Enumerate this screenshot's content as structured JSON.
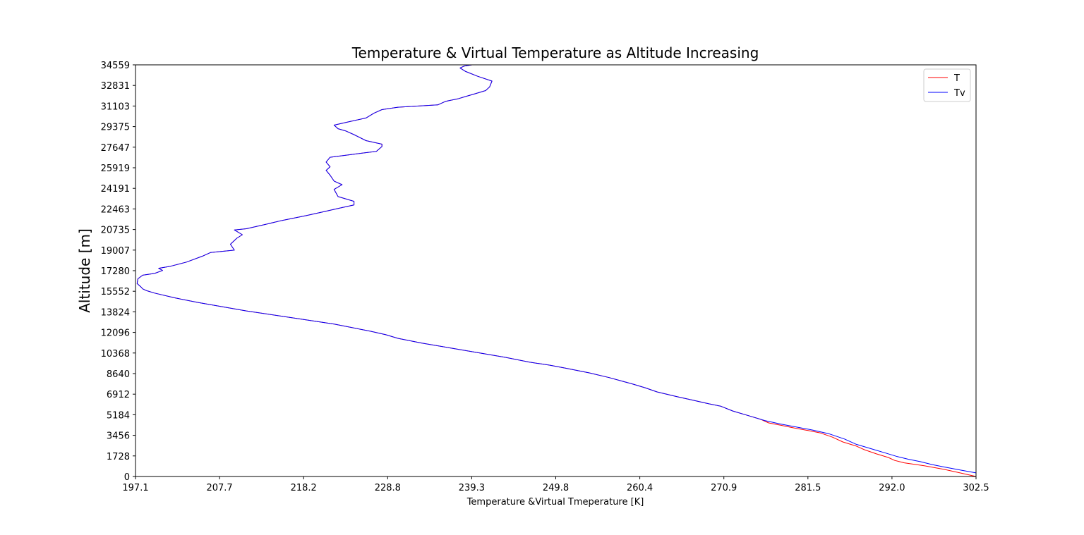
{
  "chart_data": {
    "type": "line",
    "title": "Temperature & Virtual Temperature as Altitude Increasing",
    "xlabel": "Temperature &Virtual Tmeperature [K]",
    "ylabel": "Altitude [m]",
    "xlim": [
      197.1,
      302.5
    ],
    "ylim": [
      0,
      34559
    ],
    "xticks": [
      "197.1",
      "207.7",
      "218.2",
      "228.8",
      "239.3",
      "249.8",
      "260.4",
      "270.9",
      "281.5",
      "292.0",
      "302.5"
    ],
    "yticks": [
      "0",
      "1728",
      "3456",
      "5184",
      "6912",
      "8640",
      "10368",
      "12096",
      "13824",
      "15552",
      "17280",
      "19007",
      "20735",
      "22463",
      "24191",
      "25919",
      "27647",
      "29375",
      "31103",
      "32831",
      "34559"
    ],
    "grid": false,
    "legend": {
      "position": "top-right",
      "entries": [
        "T",
        "Tv"
      ]
    },
    "series": [
      {
        "name": "T",
        "color": "#ff0000",
        "points": [
          [
            302.5,
            0
          ],
          [
            300.5,
            300
          ],
          [
            298.5,
            600
          ],
          [
            296.0,
            900
          ],
          [
            293.5,
            1150
          ],
          [
            292.3,
            1350
          ],
          [
            291.5,
            1600
          ],
          [
            290.0,
            1900
          ],
          [
            288.5,
            2250
          ],
          [
            287.5,
            2550
          ],
          [
            285.8,
            2900
          ],
          [
            284.5,
            3300
          ],
          [
            283.0,
            3650
          ],
          [
            281.5,
            3850
          ],
          [
            279.5,
            4100
          ],
          [
            278.0,
            4300
          ],
          [
            276.5,
            4500
          ],
          [
            275.5,
            4800
          ],
          [
            274.0,
            5100
          ],
          [
            272.0,
            5500
          ],
          [
            270.5,
            5900
          ],
          [
            269.0,
            6100
          ],
          [
            267.0,
            6400
          ],
          [
            265.0,
            6700
          ],
          [
            262.5,
            7100
          ],
          [
            261.0,
            7450
          ],
          [
            259.5,
            7750
          ],
          [
            256.5,
            8300
          ],
          [
            254.0,
            8700
          ],
          [
            251.0,
            9100
          ],
          [
            249.0,
            9350
          ],
          [
            246.5,
            9600
          ],
          [
            243.5,
            10000
          ],
          [
            240.0,
            10400
          ],
          [
            236.5,
            10800
          ],
          [
            233.0,
            11200
          ],
          [
            230.0,
            11600
          ],
          [
            228.5,
            11900
          ],
          [
            226.5,
            12200
          ],
          [
            222.0,
            12800
          ],
          [
            217.0,
            13300
          ],
          [
            211.0,
            13900
          ],
          [
            205.0,
            14600
          ],
          [
            202.0,
            15000
          ],
          [
            199.5,
            15400
          ],
          [
            198.5,
            15600
          ],
          [
            198.0,
            15750
          ],
          [
            197.8,
            15900
          ],
          [
            197.3,
            16200
          ],
          [
            197.4,
            16600
          ],
          [
            198.0,
            16900
          ],
          [
            199.5,
            17050
          ],
          [
            200.5,
            17300
          ],
          [
            200.0,
            17480
          ],
          [
            201.5,
            17650
          ],
          [
            203.5,
            18000
          ],
          [
            205.5,
            18500
          ],
          [
            206.5,
            18800
          ],
          [
            209.5,
            19000
          ],
          [
            209.0,
            19500
          ],
          [
            209.8,
            20000
          ],
          [
            210.5,
            20300
          ],
          [
            209.5,
            20700
          ],
          [
            211.0,
            20800
          ],
          [
            213.0,
            21100
          ],
          [
            215.5,
            21500
          ],
          [
            218.5,
            21900
          ],
          [
            220.5,
            22200
          ],
          [
            222.5,
            22500
          ],
          [
            224.5,
            22800
          ],
          [
            224.5,
            23100
          ],
          [
            222.5,
            23500
          ],
          [
            222.0,
            24100
          ],
          [
            223.0,
            24500
          ],
          [
            222.0,
            24800
          ],
          [
            221.5,
            25300
          ],
          [
            221.0,
            25700
          ],
          [
            221.5,
            26000
          ],
          [
            221.0,
            26400
          ],
          [
            221.5,
            26800
          ],
          [
            225.0,
            27100
          ],
          [
            227.3,
            27300
          ],
          [
            228.0,
            27700
          ],
          [
            228.0,
            27900
          ],
          [
            226.0,
            28200
          ],
          [
            224.5,
            28700
          ],
          [
            223.5,
            29000
          ],
          [
            222.5,
            29200
          ],
          [
            222.0,
            29500
          ],
          [
            224.0,
            29800
          ],
          [
            226.0,
            30100
          ],
          [
            227.0,
            30500
          ],
          [
            228.0,
            30800
          ],
          [
            230.0,
            31000
          ],
          [
            235.0,
            31200
          ],
          [
            236.0,
            31500
          ],
          [
            237.5,
            31700
          ],
          [
            238.5,
            31900
          ],
          [
            239.5,
            32100
          ],
          [
            241.0,
            32400
          ],
          [
            241.5,
            32700
          ],
          [
            241.8,
            33200
          ],
          [
            240.0,
            33600
          ],
          [
            238.5,
            34000
          ],
          [
            237.8,
            34300
          ],
          [
            238.3,
            34450
          ],
          [
            239.3,
            34559
          ]
        ]
      },
      {
        "name": "Tv",
        "color": "#0000ff",
        "points": [
          [
            302.5,
            300
          ],
          [
            300.5,
            550
          ],
          [
            298.5,
            800
          ],
          [
            297.0,
            1000
          ],
          [
            295.5,
            1250
          ],
          [
            294.0,
            1450
          ],
          [
            292.5,
            1700
          ],
          [
            291.0,
            2000
          ],
          [
            289.5,
            2300
          ],
          [
            287.5,
            2700
          ],
          [
            286.0,
            3150
          ],
          [
            284.0,
            3600
          ],
          [
            282.0,
            3900
          ],
          [
            280.0,
            4150
          ],
          [
            278.0,
            4400
          ],
          [
            276.0,
            4700
          ],
          [
            274.0,
            5100
          ],
          [
            272.0,
            5500
          ],
          [
            270.5,
            5900
          ],
          [
            269.0,
            6100
          ],
          [
            267.0,
            6400
          ],
          [
            265.0,
            6700
          ],
          [
            262.5,
            7100
          ],
          [
            261.0,
            7450
          ],
          [
            259.5,
            7750
          ],
          [
            256.5,
            8300
          ],
          [
            254.0,
            8700
          ],
          [
            251.0,
            9100
          ],
          [
            249.0,
            9350
          ],
          [
            246.5,
            9600
          ],
          [
            243.5,
            10000
          ],
          [
            240.0,
            10400
          ],
          [
            236.5,
            10800
          ],
          [
            233.0,
            11200
          ],
          [
            230.0,
            11600
          ],
          [
            228.5,
            11900
          ],
          [
            226.5,
            12200
          ],
          [
            222.0,
            12800
          ],
          [
            217.0,
            13300
          ],
          [
            211.0,
            13900
          ],
          [
            205.0,
            14600
          ],
          [
            202.0,
            15000
          ],
          [
            199.5,
            15400
          ],
          [
            198.5,
            15600
          ],
          [
            198.0,
            15750
          ],
          [
            197.8,
            15900
          ],
          [
            197.3,
            16200
          ],
          [
            197.4,
            16600
          ],
          [
            198.0,
            16900
          ],
          [
            199.5,
            17050
          ],
          [
            200.5,
            17300
          ],
          [
            200.0,
            17480
          ],
          [
            201.5,
            17650
          ],
          [
            203.5,
            18000
          ],
          [
            205.5,
            18500
          ],
          [
            206.5,
            18800
          ],
          [
            209.5,
            19000
          ],
          [
            209.0,
            19500
          ],
          [
            209.8,
            20000
          ],
          [
            210.5,
            20300
          ],
          [
            209.5,
            20700
          ],
          [
            211.0,
            20800
          ],
          [
            213.0,
            21100
          ],
          [
            215.5,
            21500
          ],
          [
            218.5,
            21900
          ],
          [
            220.5,
            22200
          ],
          [
            222.5,
            22500
          ],
          [
            224.5,
            22800
          ],
          [
            224.5,
            23100
          ],
          [
            222.5,
            23500
          ],
          [
            222.0,
            24100
          ],
          [
            223.0,
            24500
          ],
          [
            222.0,
            24800
          ],
          [
            221.5,
            25300
          ],
          [
            221.0,
            25700
          ],
          [
            221.5,
            26000
          ],
          [
            221.0,
            26400
          ],
          [
            221.5,
            26800
          ],
          [
            225.0,
            27100
          ],
          [
            227.3,
            27300
          ],
          [
            228.0,
            27700
          ],
          [
            228.0,
            27900
          ],
          [
            226.0,
            28200
          ],
          [
            224.5,
            28700
          ],
          [
            223.5,
            29000
          ],
          [
            222.5,
            29200
          ],
          [
            222.0,
            29500
          ],
          [
            224.0,
            29800
          ],
          [
            226.0,
            30100
          ],
          [
            227.0,
            30500
          ],
          [
            228.0,
            30800
          ],
          [
            230.0,
            31000
          ],
          [
            235.0,
            31200
          ],
          [
            236.0,
            31500
          ],
          [
            237.5,
            31700
          ],
          [
            238.5,
            31900
          ],
          [
            239.5,
            32100
          ],
          [
            241.0,
            32400
          ],
          [
            241.5,
            32700
          ],
          [
            241.8,
            33200
          ],
          [
            240.0,
            33600
          ],
          [
            238.5,
            34000
          ],
          [
            237.8,
            34300
          ],
          [
            238.3,
            34450
          ],
          [
            239.3,
            34559
          ]
        ]
      }
    ]
  }
}
